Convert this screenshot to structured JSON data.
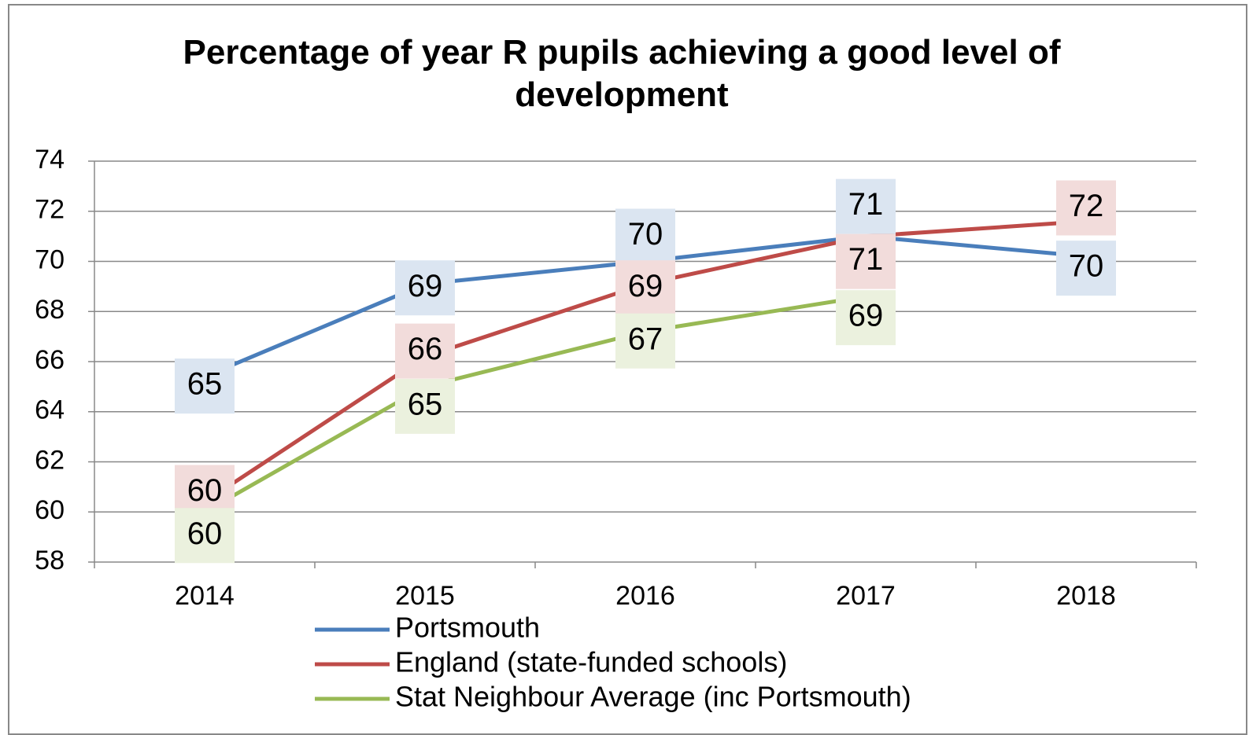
{
  "chart_data": {
    "type": "line",
    "title": "Percentage of year R pupils achieving a good level of development",
    "categories": [
      "2014",
      "2015",
      "2016",
      "2017",
      "2018"
    ],
    "series": [
      {
        "name": "Portsmouth",
        "color": "#4a7ebb",
        "values": [
          65.4,
          69.1,
          70.0,
          71.0,
          70.2
        ],
        "value_labels": [
          "65",
          "69",
          "70",
          "71",
          "70"
        ]
      },
      {
        "name": "England (state-funded schools)",
        "color": "#be4b48",
        "values": [
          60.4,
          66.2,
          69.1,
          71.0,
          71.6
        ],
        "value_labels": [
          "60",
          "66",
          "69",
          "71",
          "72"
        ]
      },
      {
        "name": "Stat Neighbour Average (inc Portsmouth)",
        "color": "#98b954",
        "values": [
          60.0,
          65.0,
          67.2,
          68.6,
          null
        ],
        "value_labels": [
          "60",
          "65",
          "67",
          "69",
          null
        ]
      }
    ],
    "ylim": [
      58,
      74
    ],
    "yticks": [
      58,
      60,
      62,
      64,
      66,
      68,
      70,
      72,
      74
    ],
    "grid": true,
    "legend": "bottom"
  }
}
